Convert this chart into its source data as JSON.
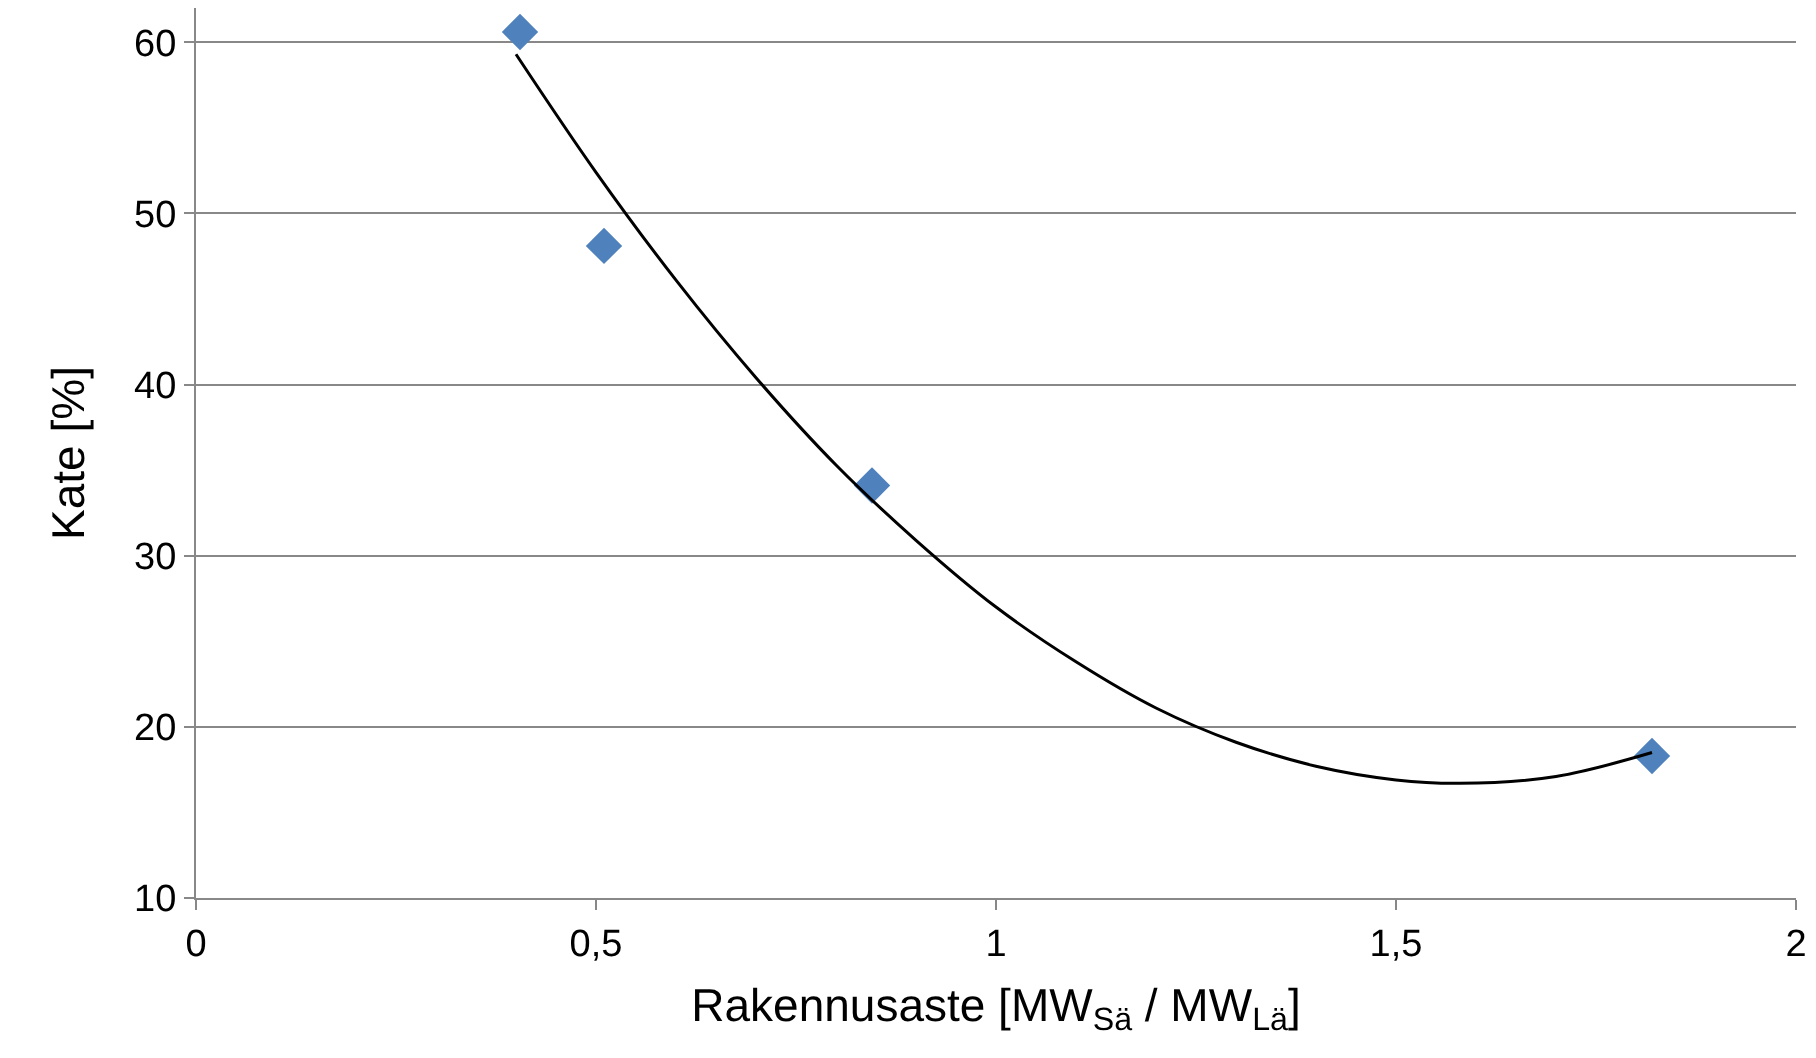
{
  "chart_data": {
    "type": "scatter",
    "xlabel": "Rakennusaste [MW$_{Sä}$ / MW$_{Lä}$]",
    "ylabel": "Kate [%]",
    "xlim": [
      0,
      2
    ],
    "xticks": [
      0,
      {
        "value": 0.5,
        "label": "0,5"
      },
      1,
      {
        "value": 1.5,
        "label": "1,5"
      },
      2
    ],
    "ylim": [
      10,
      62
    ],
    "yticks": [
      10,
      20,
      30,
      40,
      50,
      60
    ],
    "grid": "y",
    "series": [
      {
        "color": "#4f81bd",
        "marker": "diamond",
        "x": [
          0.405,
          0.51,
          0.845,
          1.82
        ],
        "values": [
          60.6,
          48.1,
          34.1,
          18.3
        ]
      },
      {
        "type": "line",
        "color": "#000000",
        "marker": "none",
        "line_style": "solid",
        "x": [
          0.4,
          0.5,
          0.6,
          0.7,
          0.8,
          0.9,
          1.0,
          1.1,
          1.2,
          1.3,
          1.4,
          1.5,
          1.58,
          1.7,
          1.82
        ],
        "values": [
          59.3,
          52.4,
          46.1,
          40.4,
          35.3,
          30.9,
          27.0,
          23.8,
          21.1,
          19.1,
          17.7,
          16.9,
          16.7,
          17.1,
          18.5
        ]
      }
    ]
  }
}
